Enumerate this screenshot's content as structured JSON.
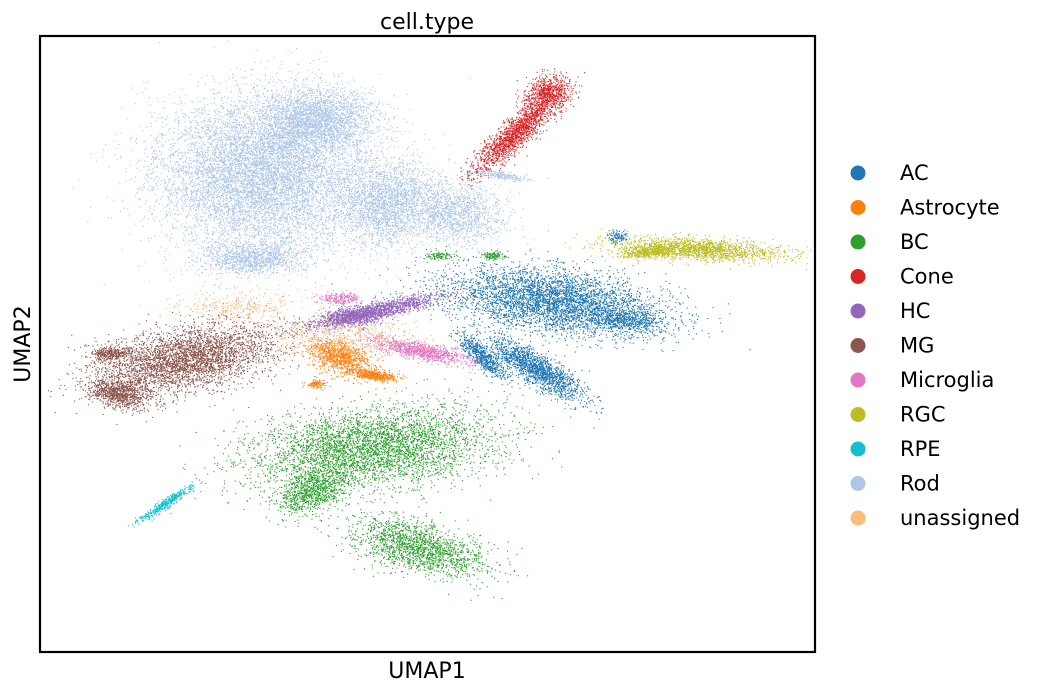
{
  "chart_data": {
    "type": "scatter",
    "title": "cell.type",
    "xlabel": "UMAP1",
    "ylabel": "UMAP2",
    "xticks": false,
    "yticks": false,
    "grid": false,
    "legend_position": "right",
    "xlim": [
      -10,
      10
    ],
    "ylim": [
      -10,
      10
    ],
    "series": [
      {
        "name": "AC",
        "color": "#1f77b4",
        "clusters": [
          {
            "cx": 3.3,
            "cy": 1.4,
            "rx": 2.8,
            "ry": 1.0,
            "rot": -10,
            "weight": 4
          },
          {
            "cx": 2.8,
            "cy": -0.8,
            "rx": 1.5,
            "ry": 0.45,
            "rot": -38,
            "weight": 1.5
          },
          {
            "cx": 1.4,
            "cy": -0.4,
            "rx": 0.9,
            "ry": 0.25,
            "rot": -50,
            "weight": 0.6
          },
          {
            "cx": 5.2,
            "cy": 0.8,
            "rx": 0.9,
            "ry": 0.3,
            "rot": -10,
            "weight": 0.4
          },
          {
            "cx": 4.9,
            "cy": 3.5,
            "rx": 0.25,
            "ry": 0.2,
            "rot": 0,
            "weight": 0.1
          }
        ]
      },
      {
        "name": "Astrocyte",
        "color": "#ff7f0e",
        "clusters": [
          {
            "cx": -2.3,
            "cy": -0.4,
            "rx": 0.9,
            "ry": 0.5,
            "rot": -25,
            "weight": 0.9
          },
          {
            "cx": -1.4,
            "cy": -1.0,
            "rx": 0.6,
            "ry": 0.15,
            "rot": -8,
            "weight": 0.4
          },
          {
            "cx": -2.9,
            "cy": -1.3,
            "rx": 0.25,
            "ry": 0.15,
            "rot": 0,
            "weight": 0.1
          }
        ]
      },
      {
        "name": "BC",
        "color": "#2ca02c",
        "clusters": [
          {
            "cx": -1.5,
            "cy": -3.4,
            "rx": 3.2,
            "ry": 1.3,
            "rot": 8,
            "weight": 4
          },
          {
            "cx": -0.3,
            "cy": -6.6,
            "rx": 1.8,
            "ry": 0.8,
            "rot": -20,
            "weight": 1.6
          },
          {
            "cx": -3.0,
            "cy": -4.8,
            "rx": 1.0,
            "ry": 0.6,
            "rot": 30,
            "weight": 0.8
          },
          {
            "cx": 0.3,
            "cy": 2.9,
            "rx": 0.35,
            "ry": 0.15,
            "rot": 0,
            "weight": 0.1
          },
          {
            "cx": 1.7,
            "cy": 2.9,
            "rx": 0.3,
            "ry": 0.12,
            "rot": 0,
            "weight": 0.1
          }
        ]
      },
      {
        "name": "Cone",
        "color": "#d62728",
        "clusters": [
          {
            "cx": 2.3,
            "cy": 6.9,
            "rx": 1.7,
            "ry": 0.4,
            "rot": 50,
            "weight": 1.5
          },
          {
            "cx": 3.1,
            "cy": 8.2,
            "rx": 0.6,
            "ry": 0.5,
            "rot": 30,
            "weight": 0.6
          }
        ]
      },
      {
        "name": "HC",
        "color": "#9467bd",
        "clusters": [
          {
            "cx": -1.3,
            "cy": 1.1,
            "rx": 1.8,
            "ry": 0.28,
            "rot": 16,
            "weight": 1.4
          },
          {
            "cx": -2.0,
            "cy": 0.9,
            "rx": 0.7,
            "ry": 0.3,
            "rot": 0,
            "weight": 0.5
          }
        ]
      },
      {
        "name": "MG",
        "color": "#8c564b",
        "clusters": [
          {
            "cx": -6.3,
            "cy": -0.5,
            "rx": 2.4,
            "ry": 1.0,
            "rot": 15,
            "weight": 3.5
          },
          {
            "cx": -8.0,
            "cy": -1.6,
            "rx": 0.8,
            "ry": 0.45,
            "rot": -15,
            "weight": 0.8
          },
          {
            "cx": -8.2,
            "cy": -0.3,
            "rx": 0.5,
            "ry": 0.2,
            "rot": 0,
            "weight": 0.3
          }
        ]
      },
      {
        "name": "Microglia",
        "color": "#e377c2",
        "clusters": [
          {
            "cx": -0.2,
            "cy": -0.2,
            "rx": 1.4,
            "ry": 0.28,
            "rot": -14,
            "weight": 0.9
          },
          {
            "cx": -2.3,
            "cy": 1.5,
            "rx": 0.5,
            "ry": 0.2,
            "rot": 0,
            "weight": 0.2
          }
        ]
      },
      {
        "name": "RGC",
        "color": "#bcbd22",
        "clusters": [
          {
            "cx": 7.0,
            "cy": 3.1,
            "rx": 2.2,
            "ry": 0.35,
            "rot": -4,
            "weight": 1.5
          },
          {
            "cx": 5.7,
            "cy": 3.0,
            "rx": 0.8,
            "ry": 0.2,
            "rot": 5,
            "weight": 0.4
          }
        ]
      },
      {
        "name": "RPE",
        "color": "#17becf",
        "clusters": [
          {
            "cx": -6.8,
            "cy": -5.2,
            "rx": 0.9,
            "ry": 0.12,
            "rot": 40,
            "weight": 0.4
          }
        ]
      },
      {
        "name": "Rod",
        "color": "#aec7e8",
        "clusters": [
          {
            "cx": -4.3,
            "cy": 5.5,
            "rx": 2.7,
            "ry": 2.5,
            "rot": 0,
            "weight": 8
          },
          {
            "cx": -2.9,
            "cy": 7.3,
            "rx": 1.5,
            "ry": 1.1,
            "rot": 0,
            "weight": 2.5
          },
          {
            "cx": -1.0,
            "cy": 4.6,
            "rx": 1.4,
            "ry": 1.4,
            "rot": 0,
            "weight": 2.2
          },
          {
            "cx": 0.8,
            "cy": 4.3,
            "rx": 1.2,
            "ry": 1.0,
            "rot": -25,
            "weight": 1.2
          },
          {
            "cx": -4.5,
            "cy": 2.8,
            "rx": 1.3,
            "ry": 0.5,
            "rot": 0,
            "weight": 1.0
          },
          {
            "cx": 1.9,
            "cy": 5.5,
            "rx": 0.7,
            "ry": 0.12,
            "rot": -10,
            "weight": 0.2
          }
        ]
      },
      {
        "name": "unassigned",
        "color": "#ffbb78",
        "clusters": [
          {
            "cx": -2.2,
            "cy": 0.2,
            "rx": 2.0,
            "ry": 0.8,
            "rot": 0,
            "weight": 0.5
          },
          {
            "cx": -5.0,
            "cy": 1.2,
            "rx": 1.5,
            "ry": 0.5,
            "rot": 0,
            "weight": 0.3
          }
        ]
      }
    ]
  }
}
